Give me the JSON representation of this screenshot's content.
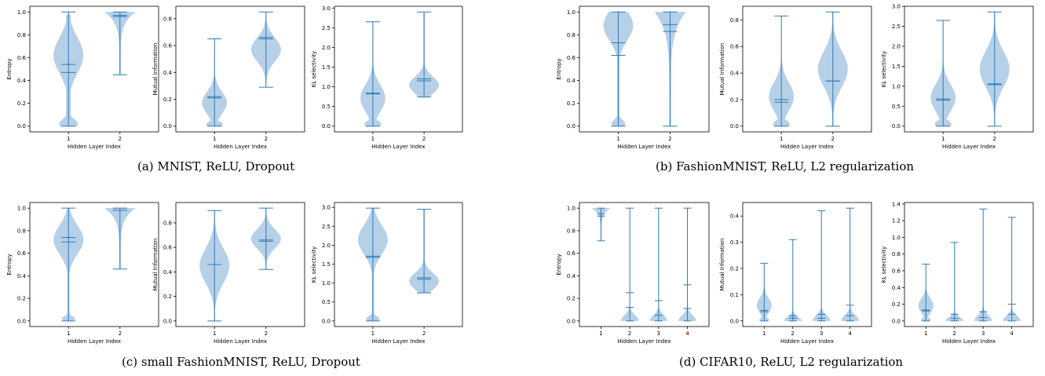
{
  "colors": {
    "violin_fill": "#aecbe5",
    "violin_line": "#2f7bb6",
    "axis": "#000000"
  },
  "captions": [
    "(a) MNIST, ReLU, Dropout",
    "(b) FashionMNIST, ReLU, L2 regularization",
    "(c) small FashionMNIST, ReLU, Dropout",
    "(d) CIFAR10, ReLU, L2 regularization"
  ],
  "chart_data": [
    {
      "panel": "a",
      "type": "violin",
      "xlabel": "Hidden Layer Index",
      "ylabel": "Entropy",
      "ylim": [
        0,
        1.0
      ],
      "yticks": [
        "0.0",
        "0.2",
        "0.4",
        "0.6",
        "0.8",
        "1.0"
      ],
      "categories": [
        "1",
        "2"
      ],
      "violins": [
        {
          "min": 0.0,
          "max": 1.0,
          "mean": 0.54,
          "median": 0.47,
          "shape": "wide-top"
        },
        {
          "min": 0.45,
          "max": 1.0,
          "mean": 0.97,
          "median": 0.96,
          "shape": "top-heavy"
        }
      ]
    },
    {
      "panel": "a",
      "type": "violin",
      "xlabel": "Hidden Layer Index",
      "ylabel": "Mutual Information",
      "ylim": [
        0,
        0.85
      ],
      "yticks": [
        "0.0",
        "0.2",
        "0.4",
        "0.6",
        "0.8"
      ],
      "categories": [
        "1",
        "2"
      ],
      "violins": [
        {
          "min": 0.0,
          "max": 0.65,
          "mean": 0.22,
          "median": 0.21,
          "shape": "low"
        },
        {
          "min": 0.29,
          "max": 0.85,
          "mean": 0.66,
          "median": 0.65,
          "shape": "mid"
        }
      ]
    },
    {
      "panel": "a",
      "type": "violin",
      "xlabel": "Hidden Layer Index",
      "ylabel": "KL selectivity",
      "ylim": [
        0,
        2.9
      ],
      "yticks": [
        "0.0",
        "0.5",
        "1.0",
        "1.5",
        "2.0",
        "2.5",
        "3.0"
      ],
      "categories": [
        "1",
        "2"
      ],
      "violins": [
        {
          "min": 0.0,
          "max": 2.65,
          "mean": 0.84,
          "median": 0.82,
          "shape": "low"
        },
        {
          "min": 0.74,
          "max": 2.9,
          "mean": 1.2,
          "median": 1.15,
          "shape": "kl2"
        }
      ]
    },
    {
      "panel": "b",
      "type": "violin",
      "xlabel": "Hidden Layer Index",
      "ylabel": "Entropy",
      "ylim": [
        0,
        1.0
      ],
      "yticks": [
        "0.0",
        "0.2",
        "0.4",
        "0.6",
        "0.8",
        "1.0"
      ],
      "categories": [
        "1",
        "2"
      ],
      "violins": [
        {
          "min": 0.0,
          "max": 1.0,
          "mean": 0.73,
          "median": 0.62,
          "shape": "bimodal"
        },
        {
          "min": 0.0,
          "max": 1.0,
          "mean": 0.89,
          "median": 0.83,
          "shape": "top-heavy"
        }
      ]
    },
    {
      "panel": "b",
      "type": "violin",
      "xlabel": "Hidden Layer Index",
      "ylabel": "Mutual Information",
      "ylim": [
        0,
        0.86
      ],
      "yticks": [
        "0.0",
        "0.2",
        "0.4",
        "0.6",
        "0.8"
      ],
      "categories": [
        "1",
        "2"
      ],
      "violins": [
        {
          "min": 0.0,
          "max": 0.83,
          "mean": 0.2,
          "median": 0.18,
          "shape": "low"
        },
        {
          "min": 0.0,
          "max": 0.86,
          "mean": 0.34,
          "median": 0.34,
          "shape": "mid"
        }
      ]
    },
    {
      "panel": "b",
      "type": "violin",
      "xlabel": "Hidden Layer Index",
      "ylabel": "KL selectivity",
      "ylim": [
        0,
        2.86
      ],
      "yticks": [
        "0.0",
        "0.5",
        "1.0",
        "1.5",
        "2.0",
        "2.5",
        "3.0"
      ],
      "categories": [
        "1",
        "2"
      ],
      "violins": [
        {
          "min": 0.0,
          "max": 2.65,
          "mean": 0.68,
          "median": 0.65,
          "shape": "low"
        },
        {
          "min": 0.0,
          "max": 2.86,
          "mean": 1.06,
          "median": 1.04,
          "shape": "mid"
        }
      ]
    },
    {
      "panel": "c",
      "type": "violin",
      "xlabel": "Hidden Layer Index",
      "ylabel": "Entropy",
      "ylim": [
        0,
        1.0
      ],
      "yticks": [
        "0.0",
        "0.2",
        "0.4",
        "0.6",
        "0.8",
        "1.0"
      ],
      "categories": [
        "1",
        "2"
      ],
      "violins": [
        {
          "min": 0.0,
          "max": 1.0,
          "mean": 0.74,
          "median": 0.7,
          "shape": "upper"
        },
        {
          "min": 0.46,
          "max": 1.0,
          "mean": 0.98,
          "median": 0.98,
          "shape": "top-heavy"
        }
      ]
    },
    {
      "panel": "c",
      "type": "violin",
      "xlabel": "Hidden Layer Index",
      "ylabel": "Mutual Information",
      "ylim": [
        0,
        0.92
      ],
      "yticks": [
        "0.0",
        "0.2",
        "0.4",
        "0.6",
        "0.8"
      ],
      "categories": [
        "1",
        "2"
      ],
      "violins": [
        {
          "min": 0.0,
          "max": 0.9,
          "mean": 0.46,
          "median": 0.46,
          "shape": "mid"
        },
        {
          "min": 0.42,
          "max": 0.92,
          "mean": 0.66,
          "median": 0.65,
          "shape": "mid"
        }
      ]
    },
    {
      "panel": "c",
      "type": "violin",
      "xlabel": "Hidden Layer Index",
      "ylabel": "KL selectivity",
      "ylim": [
        0,
        2.98
      ],
      "yticks": [
        "0.0",
        "0.5",
        "1.0",
        "1.5",
        "2.0",
        "2.5",
        "3.0"
      ],
      "categories": [
        "1",
        "2"
      ],
      "violins": [
        {
          "min": 0.0,
          "max": 2.98,
          "mean": 1.71,
          "median": 1.68,
          "shape": "upper"
        },
        {
          "min": 0.74,
          "max": 2.95,
          "mean": 1.14,
          "median": 1.1,
          "shape": "kl2"
        }
      ]
    },
    {
      "panel": "d",
      "type": "violin",
      "xlabel": "Hidden Layer Index",
      "ylabel": "Entropy",
      "ylim": [
        0,
        1.0
      ],
      "yticks": [
        "0.0",
        "0.2",
        "0.4",
        "0.6",
        "0.8",
        "1.0"
      ],
      "categories": [
        "1",
        "2",
        "3",
        "4"
      ],
      "violins": [
        {
          "min": 0.71,
          "max": 1.0,
          "mean": 0.95,
          "median": 0.93,
          "shape": "top-heavy"
        },
        {
          "min": 0.0,
          "max": 1.0,
          "mean": 0.25,
          "median": 0.12,
          "shape": "spike"
        },
        {
          "min": 0.0,
          "max": 1.0,
          "mean": 0.18,
          "median": 0.05,
          "shape": "spike"
        },
        {
          "min": 0.0,
          "max": 1.0,
          "mean": 0.32,
          "median": 0.11,
          "shape": "spike"
        }
      ]
    },
    {
      "panel": "d",
      "type": "violin",
      "xlabel": "Hidden Layer Index",
      "ylabel": "Mutual Information",
      "ylim": [
        0,
        0.43
      ],
      "yticks": [
        "0.0",
        "0.1",
        "0.2",
        "0.3",
        "0.4"
      ],
      "categories": [
        "1",
        "2",
        "3",
        "4"
      ],
      "violins": [
        {
          "min": 0.0,
          "max": 0.22,
          "mean": 0.04,
          "median": 0.035,
          "shape": "low"
        },
        {
          "min": 0.0,
          "max": 0.31,
          "mean": 0.02,
          "median": 0.01,
          "shape": "spike"
        },
        {
          "min": 0.0,
          "max": 0.42,
          "mean": 0.025,
          "median": 0.01,
          "shape": "spike"
        },
        {
          "min": 0.0,
          "max": 0.43,
          "mean": 0.06,
          "median": 0.02,
          "shape": "spike"
        }
      ]
    },
    {
      "panel": "d",
      "type": "violin",
      "xlabel": "Hidden Layer Index",
      "ylabel": "KL selectivity",
      "ylim": [
        0,
        1.35
      ],
      "yticks": [
        "0.0",
        "0.2",
        "0.4",
        "0.6",
        "0.8",
        "1.0",
        "1.2",
        "1.4"
      ],
      "categories": [
        "1",
        "2",
        "3",
        "4"
      ],
      "violins": [
        {
          "min": 0.0,
          "max": 0.68,
          "mean": 0.13,
          "median": 0.12,
          "shape": "low"
        },
        {
          "min": 0.0,
          "max": 0.94,
          "mean": 0.08,
          "median": 0.03,
          "shape": "spike"
        },
        {
          "min": 0.0,
          "max": 1.34,
          "mean": 0.11,
          "median": 0.04,
          "shape": "spike"
        },
        {
          "min": 0.0,
          "max": 1.24,
          "mean": 0.2,
          "median": 0.08,
          "shape": "spike"
        }
      ]
    }
  ]
}
